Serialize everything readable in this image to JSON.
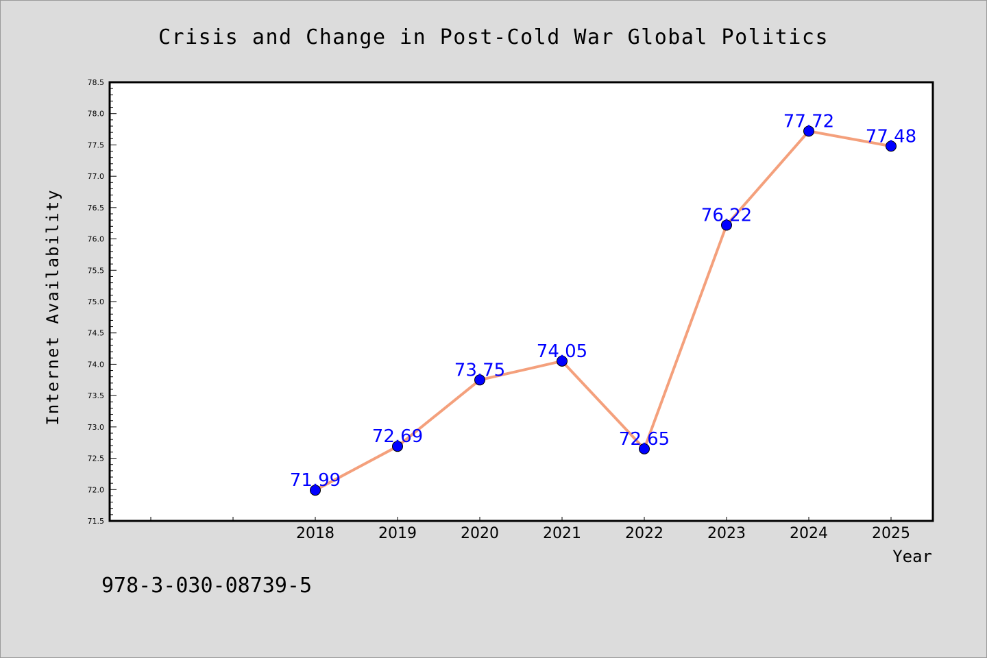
{
  "chart_data": {
    "type": "line",
    "title": "Crisis and Change in Post-Cold War Global Politics",
    "xlabel": "Year",
    "ylabel": "Internet Availability",
    "x": [
      "2018",
      "2019",
      "2020",
      "2021",
      "2022",
      "2023",
      "2024",
      "2025"
    ],
    "series": [
      {
        "values": [
          71.99,
          72.69,
          73.75,
          74.05,
          72.65,
          76.22,
          77.72,
          77.48
        ]
      }
    ],
    "data_labels": [
      "71.99",
      "72.69",
      "73.75",
      "74.05",
      "72.65",
      "76.22",
      "77.72",
      "77.48"
    ],
    "y_ticks": [
      "71.5",
      "72.0",
      "72.5",
      "73.0",
      "73.5",
      "74.0",
      "74.5",
      "75.0",
      "75.5",
      "76.0",
      "76.5",
      "77.0",
      "77.5",
      "78.0",
      "78.5"
    ],
    "ylim": [
      71.5,
      78.5
    ],
    "grid": false,
    "legend": "none",
    "line_color": "#f4a07c",
    "marker_color": "#0000ff",
    "label_color": "#0000ff"
  },
  "footer": {
    "isbn": "978-3-030-08739-5"
  }
}
